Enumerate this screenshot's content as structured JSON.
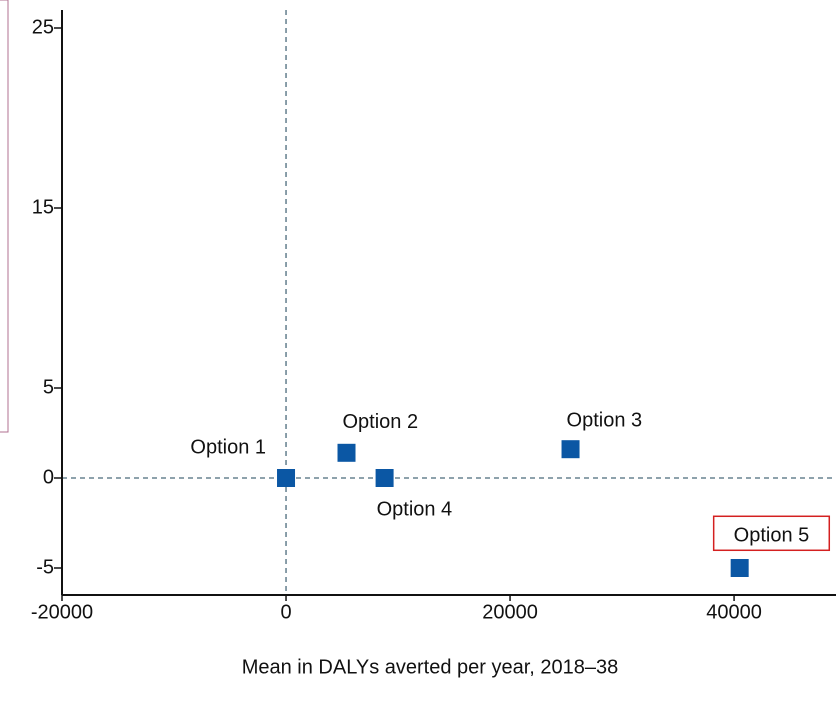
{
  "chart_data": {
    "type": "scatter",
    "x_label": "Mean in DALYs averted per year, 2018–38",
    "x": [
      0,
      5400,
      25400,
      8800,
      40500
    ],
    "values": [
      0,
      1.4,
      1.6,
      0,
      -5
    ],
    "labels": [
      "Option 1",
      "Option 2",
      "Option 3",
      "Option 4",
      "Option 5"
    ],
    "color": "#0b57a4",
    "highlight_color": "#d42020",
    "xlim": [
      -20000,
      49100
    ],
    "xticks": [
      -20000,
      0,
      20000,
      40000
    ],
    "ylim": [
      -6.5,
      26
    ],
    "yticks": [
      -5,
      0,
      5,
      15,
      25
    ],
    "reference_lines": {
      "x": 0,
      "y": 0
    }
  }
}
